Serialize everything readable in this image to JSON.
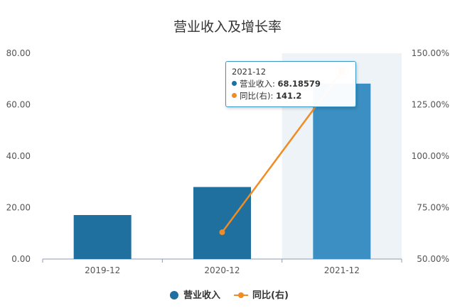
{
  "chart_data": {
    "type": "bar+line",
    "title": "营业收入及增长率",
    "categories": [
      "2019-12",
      "2020-12",
      "2021-12"
    ],
    "y_left": {
      "ticks": [
        "0.00",
        "20.00",
        "40.00",
        "60.00",
        "80.00"
      ],
      "range": [
        0,
        80
      ]
    },
    "y_right": {
      "ticks": [
        "50.00%",
        "75.00%",
        "100.00%",
        "125.00%",
        "150.00%"
      ],
      "range": [
        50,
        150
      ]
    },
    "series": [
      {
        "name": "营业收入",
        "type": "bar",
        "axis": "left",
        "color": "#1f6f9f",
        "highlight_color": "#3b8fc2",
        "values": [
          17.1,
          28.0,
          68.18579
        ]
      },
      {
        "name": "同比(右)",
        "type": "line",
        "axis": "right",
        "color": "#f08c24",
        "values": [
          null,
          63.0,
          141.2
        ]
      }
    ],
    "grid": false,
    "legend_position": "bottom",
    "highlighted_category": "2021-12"
  },
  "tooltip": {
    "header": "2021-12",
    "rows": [
      {
        "label": "营业收入: ",
        "value": "68.18579",
        "color": "#1f6f9f"
      },
      {
        "label": "同比(右): ",
        "value": "141.2",
        "color": "#f08c24"
      }
    ]
  }
}
